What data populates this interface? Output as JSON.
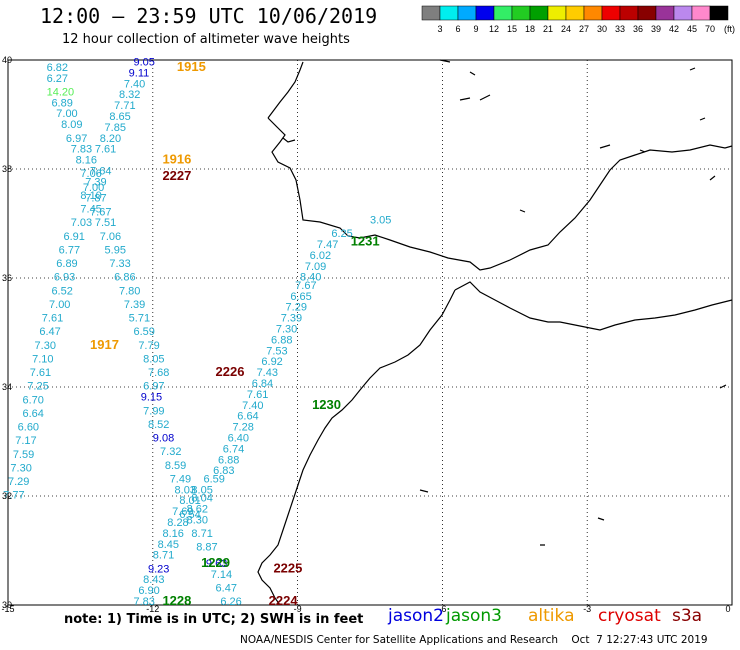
{
  "header": {
    "title": "12:00 – 23:59 UTC 10/06/2019",
    "subtitle": "12 hour collection of altimeter wave heights"
  },
  "colorbar": {
    "unit": "(ft)",
    "colors": [
      "#7f7f7f",
      "#00eeee",
      "#00aaff",
      "#0000ee",
      "#33ee66",
      "#22cc22",
      "#00a000",
      "#eeee00",
      "#ffcc00",
      "#ff8800",
      "#ee0000",
      "#bb0000",
      "#880000",
      "#993399",
      "#bb88ee",
      "#ff88cc",
      "#000000"
    ],
    "labels": [
      "3",
      "6",
      "9",
      "12",
      "15",
      "18",
      "21",
      "24",
      "27",
      "30",
      "33",
      "36",
      "39",
      "42",
      "45",
      "70"
    ]
  },
  "axes": {
    "lon_ticks": [
      "-15",
      "-12",
      "-9",
      "-6",
      "-3",
      "0"
    ],
    "lat_ticks": [
      "40",
      "38",
      "36",
      "34",
      "32",
      "30"
    ]
  },
  "colors": {
    "cyan": "#22aacc",
    "green_light": "#55ee55",
    "blue": "#0000cc",
    "orange": "#ee9900",
    "darkred": "#7a0000",
    "green": "#008000"
  },
  "track_labels": [
    {
      "t": "1915",
      "lon": -11.5,
      "lat": 39.8,
      "c": "orange"
    },
    {
      "t": "1916",
      "lon": -11.8,
      "lat": 38.1,
      "c": "orange"
    },
    {
      "t": "2227",
      "lon": -11.8,
      "lat": 37.8,
      "c": "darkred"
    },
    {
      "t": "1231",
      "lon": -7.9,
      "lat": 36.6,
      "c": "green"
    },
    {
      "t": "1917",
      "lon": -13.3,
      "lat": 34.7,
      "c": "orange"
    },
    {
      "t": "2226",
      "lon": -10.7,
      "lat": 34.2,
      "c": "darkred"
    },
    {
      "t": "1230",
      "lon": -8.7,
      "lat": 33.6,
      "c": "green"
    },
    {
      "t": "1229",
      "lon": -11.0,
      "lat": 30.7,
      "c": "green"
    },
    {
      "t": "2225",
      "lon": -9.5,
      "lat": 30.6,
      "c": "darkred"
    },
    {
      "t": "1228",
      "lon": -11.8,
      "lat": 30.0,
      "c": "green"
    },
    {
      "t": "2224",
      "lon": -9.6,
      "lat": 30.0,
      "c": "darkred"
    }
  ],
  "wave_values": [
    {
      "t": "9.05",
      "lon": -12.4,
      "lat": 39.9,
      "c": "blue"
    },
    {
      "t": "9.11",
      "lon": -12.5,
      "lat": 39.7,
      "c": "blue"
    },
    {
      "t": "7.40",
      "lon": -12.6,
      "lat": 39.5,
      "c": "cyan"
    },
    {
      "t": "8.32",
      "lon": -12.7,
      "lat": 39.3,
      "c": "cyan"
    },
    {
      "t": "7.71",
      "lon": -12.8,
      "lat": 39.1,
      "c": "cyan"
    },
    {
      "t": "8.65",
      "lon": -12.9,
      "lat": 38.9,
      "c": "cyan"
    },
    {
      "t": "7.85",
      "lon": -13.0,
      "lat": 38.7,
      "c": "cyan"
    },
    {
      "t": "8.20",
      "lon": -13.1,
      "lat": 38.5,
      "c": "cyan"
    },
    {
      "t": "7.61",
      "lon": -13.2,
      "lat": 38.3,
      "c": "cyan"
    },
    {
      "t": "6.82",
      "lon": -14.2,
      "lat": 39.8,
      "c": "cyan"
    },
    {
      "t": "6.27",
      "lon": -14.2,
      "lat": 39.6,
      "c": "cyan"
    },
    {
      "t": "14.20",
      "lon": -14.2,
      "lat": 39.35,
      "c": "green_light"
    },
    {
      "t": "6.89",
      "lon": -14.1,
      "lat": 39.15,
      "c": "cyan"
    },
    {
      "t": "7.00",
      "lon": -14.0,
      "lat": 38.95,
      "c": "cyan"
    },
    {
      "t": "8.09",
      "lon": -13.9,
      "lat": 38.75,
      "c": "cyan"
    },
    {
      "t": "6.97",
      "lon": -13.8,
      "lat": 38.5,
      "c": "cyan"
    },
    {
      "t": "7.83",
      "lon": -13.7,
      "lat": 38.3,
      "c": "cyan"
    },
    {
      "t": "8.16",
      "lon": -13.6,
      "lat": 38.1,
      "c": "cyan"
    },
    {
      "t": "7.06",
      "lon": -13.5,
      "lat": 37.85,
      "c": "cyan"
    },
    {
      "t": "7.64",
      "lon": -13.3,
      "lat": 37.9,
      "c": "cyan"
    },
    {
      "t": "7.39",
      "lon": -13.4,
      "lat": 37.7,
      "c": "cyan"
    },
    {
      "t": "7.00",
      "lon": -13.45,
      "lat": 37.6,
      "c": "cyan"
    },
    {
      "t": "8.10",
      "lon": -13.5,
      "lat": 37.45,
      "c": "cyan"
    },
    {
      "t": "7.87",
      "lon": -13.4,
      "lat": 37.4,
      "c": "cyan"
    },
    {
      "t": "7.45",
      "lon": -13.5,
      "lat": 37.2,
      "c": "cyan"
    },
    {
      "t": "7.67",
      "lon": -13.3,
      "lat": 37.15,
      "c": "cyan"
    },
    {
      "t": "7.03",
      "lon": -13.7,
      "lat": 36.95,
      "c": "cyan"
    },
    {
      "t": "7.51",
      "lon": -13.2,
      "lat": 36.95,
      "c": "cyan"
    },
    {
      "t": "6.91",
      "lon": -13.85,
      "lat": 36.7,
      "c": "cyan"
    },
    {
      "t": "7.06",
      "lon": -13.1,
      "lat": 36.7,
      "c": "cyan"
    },
    {
      "t": "6.77",
      "lon": -13.95,
      "lat": 36.45,
      "c": "cyan"
    },
    {
      "t": "5.95",
      "lon": -13.0,
      "lat": 36.45,
      "c": "cyan"
    },
    {
      "t": "6.89",
      "lon": -14.0,
      "lat": 36.2,
      "c": "cyan"
    },
    {
      "t": "7.33",
      "lon": -12.9,
      "lat": 36.2,
      "c": "cyan"
    },
    {
      "t": "6.93",
      "lon": -14.05,
      "lat": 35.95,
      "c": "cyan"
    },
    {
      "t": "6.86",
      "lon": -12.8,
      "lat": 35.95,
      "c": "cyan"
    },
    {
      "t": "6.52",
      "lon": -14.1,
      "lat": 35.7,
      "c": "cyan"
    },
    {
      "t": "7.80",
      "lon": -12.7,
      "lat": 35.7,
      "c": "cyan"
    },
    {
      "t": "7.00",
      "lon": -14.15,
      "lat": 35.45,
      "c": "cyan"
    },
    {
      "t": "7.39",
      "lon": -12.6,
      "lat": 35.45,
      "c": "cyan"
    },
    {
      "t": "7.61",
      "lon": -14.3,
      "lat": 35.2,
      "c": "cyan"
    },
    {
      "t": "5.71",
      "lon": -12.5,
      "lat": 35.2,
      "c": "cyan"
    },
    {
      "t": "6.47",
      "lon": -14.35,
      "lat": 34.95,
      "c": "cyan"
    },
    {
      "t": "6.59",
      "lon": -12.4,
      "lat": 34.95,
      "c": "cyan"
    },
    {
      "t": "7.30",
      "lon": -14.45,
      "lat": 34.7,
      "c": "cyan"
    },
    {
      "t": "7.79",
      "lon": -12.3,
      "lat": 34.7,
      "c": "cyan"
    },
    {
      "t": "7.10",
      "lon": -14.5,
      "lat": 34.45,
      "c": "cyan"
    },
    {
      "t": "8.05",
      "lon": -12.2,
      "lat": 34.45,
      "c": "cyan"
    },
    {
      "t": "7.61",
      "lon": -14.55,
      "lat": 34.2,
      "c": "cyan"
    },
    {
      "t": "7.68",
      "lon": -12.1,
      "lat": 34.2,
      "c": "cyan"
    },
    {
      "t": "7.25",
      "lon": -14.6,
      "lat": 33.95,
      "c": "cyan"
    },
    {
      "t": "6.97",
      "lon": -12.2,
      "lat": 33.95,
      "c": "cyan"
    },
    {
      "t": "6.70",
      "lon": -14.7,
      "lat": 33.7,
      "c": "cyan"
    },
    {
      "t": "9.15",
      "lon": -12.25,
      "lat": 33.75,
      "c": "blue"
    },
    {
      "t": "6.64",
      "lon": -14.7,
      "lat": 33.45,
      "c": "cyan"
    },
    {
      "t": "7.99",
      "lon": -12.2,
      "lat": 33.5,
      "c": "cyan"
    },
    {
      "t": "6.60",
      "lon": -14.8,
      "lat": 33.2,
      "c": "cyan"
    },
    {
      "t": "8.52",
      "lon": -12.1,
      "lat": 33.25,
      "c": "cyan"
    },
    {
      "t": "7.17",
      "lon": -14.85,
      "lat": 32.95,
      "c": "cyan"
    },
    {
      "t": "9.08",
      "lon": -12.0,
      "lat": 33.0,
      "c": "blue"
    },
    {
      "t": "7.59",
      "lon": -14.9,
      "lat": 32.7,
      "c": "cyan"
    },
    {
      "t": "7.32",
      "lon": -11.85,
      "lat": 32.75,
      "c": "cyan"
    },
    {
      "t": "7.30",
      "lon": -14.95,
      "lat": 32.45,
      "c": "cyan"
    },
    {
      "t": "8.59",
      "lon": -11.75,
      "lat": 32.5,
      "c": "cyan"
    },
    {
      "t": "7.29",
      "lon": -15.0,
      "lat": 32.2,
      "c": "cyan"
    },
    {
      "t": "7.49",
      "lon": -11.65,
      "lat": 32.25,
      "c": "cyan"
    },
    {
      "t": "7.77",
      "lon": -15.1,
      "lat": 31.95,
      "c": "cyan"
    },
    {
      "t": "8.03",
      "lon": -11.55,
      "lat": 32.05,
      "c": "cyan"
    },
    {
      "t": "8.05",
      "lon": -11.2,
      "lat": 32.05,
      "c": "cyan"
    },
    {
      "t": "6.59",
      "lon": -10.95,
      "lat": 32.25,
      "c": "cyan"
    },
    {
      "t": "8.01",
      "lon": -11.45,
      "lat": 31.85,
      "c": "cyan"
    },
    {
      "t": "8.04",
      "lon": -11.2,
      "lat": 31.9,
      "c": "cyan"
    },
    {
      "t": "7.69",
      "lon": -11.6,
      "lat": 31.65,
      "c": "cyan"
    },
    {
      "t": "8.62",
      "lon": -11.3,
      "lat": 31.7,
      "c": "cyan"
    },
    {
      "t": "6.54",
      "lon": -11.45,
      "lat": 31.6,
      "c": "cyan"
    },
    {
      "t": "8.28",
      "lon": -11.7,
      "lat": 31.45,
      "c": "cyan"
    },
    {
      "t": "8.30",
      "lon": -11.3,
      "lat": 31.5,
      "c": "cyan"
    },
    {
      "t": "8.16",
      "lon": -11.8,
      "lat": 31.25,
      "c": "cyan"
    },
    {
      "t": "8.71",
      "lon": -11.2,
      "lat": 31.25,
      "c": "cyan"
    },
    {
      "t": "8.45",
      "lon": -11.9,
      "lat": 31.05,
      "c": "cyan"
    },
    {
      "t": "8.87",
      "lon": -11.1,
      "lat": 31.0,
      "c": "cyan"
    },
    {
      "t": "8.71",
      "lon": -12.0,
      "lat": 30.85,
      "c": "cyan"
    },
    {
      "t": "9.23",
      "lon": -12.1,
      "lat": 30.6,
      "c": "blue"
    },
    {
      "t": "9.63",
      "lon": -10.9,
      "lat": 30.7,
      "c": "blue"
    },
    {
      "t": "8.43",
      "lon": -12.2,
      "lat": 30.4,
      "c": "cyan"
    },
    {
      "t": "7.14",
      "lon": -10.8,
      "lat": 30.5,
      "c": "cyan"
    },
    {
      "t": "6.90",
      "lon": -12.3,
      "lat": 30.2,
      "c": "cyan"
    },
    {
      "t": "6.47",
      "lon": -10.7,
      "lat": 30.25,
      "c": "cyan"
    },
    {
      "t": "7.83",
      "lon": -12.4,
      "lat": 30.0,
      "c": "cyan"
    },
    {
      "t": "6.26",
      "lon": -10.6,
      "lat": 30.0,
      "c": "cyan"
    },
    {
      "t": "3.05",
      "lon": -7.5,
      "lat": 37.0,
      "c": "cyan"
    },
    {
      "t": "6.25",
      "lon": -8.3,
      "lat": 36.75,
      "c": "cyan"
    },
    {
      "t": "7.47",
      "lon": -8.6,
      "lat": 36.55,
      "c": "cyan"
    },
    {
      "t": "6.02",
      "lon": -8.75,
      "lat": 36.35,
      "c": "cyan"
    },
    {
      "t": "7.09",
      "lon": -8.85,
      "lat": 36.15,
      "c": "cyan"
    },
    {
      "t": "8.40",
      "lon": -8.95,
      "lat": 35.95,
      "c": "cyan"
    },
    {
      "t": "7.67",
      "lon": -9.05,
      "lat": 35.8,
      "c": "cyan"
    },
    {
      "t": "6.65",
      "lon": -9.15,
      "lat": 35.6,
      "c": "cyan"
    },
    {
      "t": "7.29",
      "lon": -9.25,
      "lat": 35.4,
      "c": "cyan"
    },
    {
      "t": "7.39",
      "lon": -9.35,
      "lat": 35.2,
      "c": "cyan"
    },
    {
      "t": "7.30",
      "lon": -9.45,
      "lat": 35.0,
      "c": "cyan"
    },
    {
      "t": "6.88",
      "lon": -9.55,
      "lat": 34.8,
      "c": "cyan"
    },
    {
      "t": "7.53",
      "lon": -9.65,
      "lat": 34.6,
      "c": "cyan"
    },
    {
      "t": "6.92",
      "lon": -9.75,
      "lat": 34.4,
      "c": "cyan"
    },
    {
      "t": "7.43",
      "lon": -9.85,
      "lat": 34.2,
      "c": "cyan"
    },
    {
      "t": "6.84",
      "lon": -9.95,
      "lat": 34.0,
      "c": "cyan"
    },
    {
      "t": "7.61",
      "lon": -10.05,
      "lat": 33.8,
      "c": "cyan"
    },
    {
      "t": "7.40",
      "lon": -10.15,
      "lat": 33.6,
      "c": "cyan"
    },
    {
      "t": "6.64",
      "lon": -10.25,
      "lat": 33.4,
      "c": "cyan"
    },
    {
      "t": "7.28",
      "lon": -10.35,
      "lat": 33.2,
      "c": "cyan"
    },
    {
      "t": "6.40",
      "lon": -10.45,
      "lat": 33.0,
      "c": "cyan"
    },
    {
      "t": "6.74",
      "lon": -10.55,
      "lat": 32.8,
      "c": "cyan"
    },
    {
      "t": "6.88",
      "lon": -10.65,
      "lat": 32.6,
      "c": "cyan"
    },
    {
      "t": "6.83",
      "lon": -10.75,
      "lat": 32.4,
      "c": "cyan"
    }
  ],
  "note": "note:  1) Time is in UTC;  2) SWH is in feet",
  "missions": [
    {
      "t": "jason2",
      "c": "#0000dd"
    },
    {
      "t": "jason3",
      "c": "#009900"
    },
    {
      "t": "altika",
      "c": "#ee9900"
    },
    {
      "t": "cryosat",
      "c": "#dd0000"
    },
    {
      "t": "s3a",
      "c": "#880000"
    }
  ],
  "footer": "NOAA/NESDIS Center for Satellite Applications and Research    Oct  7 12:27:43 UTC 2019"
}
